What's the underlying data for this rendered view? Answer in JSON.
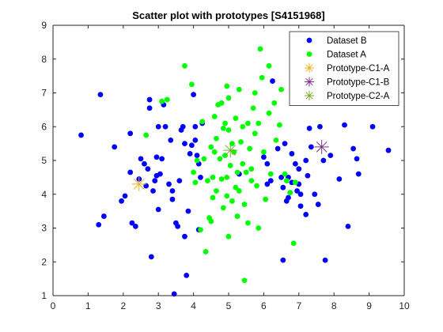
{
  "chart_data": {
    "type": "scatter",
    "title": "Scatter plot with prototypes [S4151968]",
    "xlabel": "",
    "ylabel": "",
    "xlim": [
      0,
      10
    ],
    "ylim": [
      1,
      9
    ],
    "xticks": [
      0,
      1,
      2,
      3,
      4,
      5,
      6,
      7,
      8,
      9,
      10
    ],
    "yticks": [
      1,
      2,
      3,
      4,
      5,
      6,
      7,
      8,
      9
    ],
    "grid": false,
    "legend_position": "top-right",
    "series": [
      {
        "name": "Dataset B",
        "color": "#0000ff",
        "marker": "circle",
        "points": [
          [
            0.8,
            5.75
          ],
          [
            1.35,
            6.95
          ],
          [
            1.3,
            3.1
          ],
          [
            1.45,
            3.35
          ],
          [
            1.75,
            5.4
          ],
          [
            1.95,
            3.8
          ],
          [
            2.05,
            3.95
          ],
          [
            2.2,
            4.65
          ],
          [
            2.2,
            5.8
          ],
          [
            2.25,
            3.15
          ],
          [
            2.35,
            3.05
          ],
          [
            2.45,
            4.45
          ],
          [
            2.5,
            5.05
          ],
          [
            2.6,
            4.9
          ],
          [
            2.65,
            4.25
          ],
          [
            2.7,
            4.75
          ],
          [
            2.75,
            6.8
          ],
          [
            2.75,
            6.55
          ],
          [
            2.8,
            2.15
          ],
          [
            2.85,
            4.1
          ],
          [
            2.9,
            4.4
          ],
          [
            2.95,
            5.1
          ],
          [
            2.95,
            4.55
          ],
          [
            3.0,
            6.0
          ],
          [
            3.0,
            3.55
          ],
          [
            3.05,
            4.6
          ],
          [
            3.1,
            5.05
          ],
          [
            3.15,
            6.65
          ],
          [
            3.2,
            6.0
          ],
          [
            3.3,
            4.3
          ],
          [
            3.35,
            5.6
          ],
          [
            3.4,
            4.1
          ],
          [
            3.4,
            3.85
          ],
          [
            3.45,
            1.05
          ],
          [
            3.5,
            3.15
          ],
          [
            3.55,
            3.05
          ],
          [
            3.6,
            4.4
          ],
          [
            3.65,
            5.9
          ],
          [
            3.7,
            6.0
          ],
          [
            3.75,
            5.5
          ],
          [
            3.75,
            2.75
          ],
          [
            3.8,
            1.6
          ],
          [
            3.85,
            3.5
          ],
          [
            3.9,
            5.2
          ],
          [
            3.95,
            5.45
          ],
          [
            4.0,
            6.95
          ],
          [
            4.05,
            6.0
          ],
          [
            4.05,
            5.6
          ],
          [
            4.1,
            5.15
          ],
          [
            4.15,
            2.95
          ],
          [
            4.15,
            4.9
          ],
          [
            4.2,
            4.5
          ],
          [
            4.25,
            6.1
          ],
          [
            6.0,
            5.1
          ],
          [
            6.1,
            4.9
          ],
          [
            6.2,
            4.4
          ],
          [
            6.25,
            7.35
          ],
          [
            6.4,
            5.35
          ],
          [
            6.5,
            4.5
          ],
          [
            6.55,
            4.2
          ],
          [
            6.6,
            5.5
          ],
          [
            6.65,
            3.8
          ],
          [
            6.7,
            4.5
          ],
          [
            6.8,
            5.2
          ],
          [
            6.8,
            4.35
          ],
          [
            6.9,
            4.9
          ],
          [
            7.0,
            4.75
          ],
          [
            7.0,
            4.3
          ],
          [
            7.05,
            3.65
          ],
          [
            7.2,
            5.0
          ],
          [
            7.3,
            5.95
          ],
          [
            7.35,
            5.4
          ],
          [
            7.45,
            4.0
          ],
          [
            7.55,
            3.7
          ],
          [
            7.6,
            6.0
          ],
          [
            7.7,
            5.0
          ],
          [
            7.75,
            2.05
          ],
          [
            7.9,
            5.15
          ],
          [
            8.15,
            4.45
          ],
          [
            8.3,
            6.05
          ],
          [
            8.4,
            3.05
          ],
          [
            8.55,
            5.35
          ],
          [
            8.65,
            5.05
          ],
          [
            8.7,
            4.6
          ],
          [
            9.1,
            6.0
          ],
          [
            9.55,
            5.3
          ],
          [
            6.55,
            2.05
          ],
          [
            7.2,
            3.4
          ],
          [
            6.95,
            4.1
          ],
          [
            7.25,
            4.55
          ],
          [
            7.05,
            4.0
          ],
          [
            5.3,
            4.6
          ],
          [
            6.1,
            4.3
          ],
          [
            6.7,
            3.9
          ]
        ]
      },
      {
        "name": "Dataset A",
        "color": "#00ff00",
        "marker": "circle",
        "points": [
          [
            2.65,
            5.75
          ],
          [
            3.1,
            6.75
          ],
          [
            3.25,
            6.8
          ],
          [
            3.75,
            7.8
          ],
          [
            3.95,
            7.25
          ],
          [
            4.0,
            4.65
          ],
          [
            4.05,
            4.35
          ],
          [
            4.1,
            5.0
          ],
          [
            4.2,
            2.95
          ],
          [
            4.25,
            6.15
          ],
          [
            4.3,
            5.05
          ],
          [
            4.35,
            2.3
          ],
          [
            4.4,
            4.4
          ],
          [
            4.45,
            3.3
          ],
          [
            4.5,
            5.4
          ],
          [
            4.5,
            3.2
          ],
          [
            4.55,
            4.5
          ],
          [
            4.55,
            3.9
          ],
          [
            4.6,
            6.3
          ],
          [
            4.65,
            5.65
          ],
          [
            4.65,
            4.1
          ],
          [
            4.7,
            6.65
          ],
          [
            4.75,
            5.05
          ],
          [
            4.8,
            6.7
          ],
          [
            4.8,
            4.45
          ],
          [
            4.85,
            3.6
          ],
          [
            4.9,
            6.1
          ],
          [
            4.9,
            5.15
          ],
          [
            4.95,
            7.2
          ],
          [
            4.95,
            4.5
          ],
          [
            5.0,
            6.85
          ],
          [
            5.0,
            5.9
          ],
          [
            5.0,
            2.75
          ],
          [
            5.05,
            4.85
          ],
          [
            5.1,
            3.8
          ],
          [
            5.15,
            5.25
          ],
          [
            5.2,
            6.25
          ],
          [
            5.2,
            4.2
          ],
          [
            5.25,
            3.35
          ],
          [
            5.3,
            7.1
          ],
          [
            5.3,
            4.1
          ],
          [
            5.35,
            5.55
          ],
          [
            5.4,
            6.0
          ],
          [
            5.45,
            3.7
          ],
          [
            5.45,
            1.45
          ],
          [
            5.5,
            4.65
          ],
          [
            5.55,
            6.1
          ],
          [
            5.55,
            3.15
          ],
          [
            5.6,
            5.35
          ],
          [
            5.65,
            4.4
          ],
          [
            5.7,
            6.55
          ],
          [
            5.75,
            7.0
          ],
          [
            5.75,
            5.8
          ],
          [
            5.8,
            4.25
          ],
          [
            5.85,
            3.0
          ],
          [
            5.85,
            6.1
          ],
          [
            5.9,
            8.3
          ],
          [
            5.95,
            7.45
          ],
          [
            6.0,
            5.25
          ],
          [
            6.05,
            3.85
          ],
          [
            6.15,
            7.8
          ],
          [
            6.15,
            6.4
          ],
          [
            6.2,
            4.6
          ],
          [
            6.3,
            6.7
          ],
          [
            6.35,
            5.6
          ],
          [
            6.45,
            6.05
          ],
          [
            6.5,
            7.1
          ],
          [
            6.6,
            4.6
          ],
          [
            6.65,
            4.4
          ],
          [
            6.75,
            4.05
          ],
          [
            6.85,
            2.55
          ],
          [
            6.9,
            4.35
          ],
          [
            5.1,
            5.5
          ],
          [
            5.4,
            4.9
          ],
          [
            4.6,
            5.25
          ],
          [
            4.85,
            5.95
          ],
          [
            5.65,
            4.75
          ],
          [
            4.95,
            3.95
          ],
          [
            5.25,
            4.65
          ]
        ]
      },
      {
        "name": "Prototype-C1-A",
        "color": "#edb120",
        "marker": "asterisk",
        "points": [
          [
            2.45,
            4.3
          ]
        ]
      },
      {
        "name": "Prototype-C1-B",
        "color": "#7e2f8e",
        "marker": "asterisk",
        "points": [
          [
            7.65,
            5.4
          ]
        ]
      },
      {
        "name": "Prototype-C2-A",
        "color": "#77ac30",
        "marker": "asterisk",
        "points": [
          [
            5.05,
            5.3
          ]
        ]
      }
    ]
  }
}
